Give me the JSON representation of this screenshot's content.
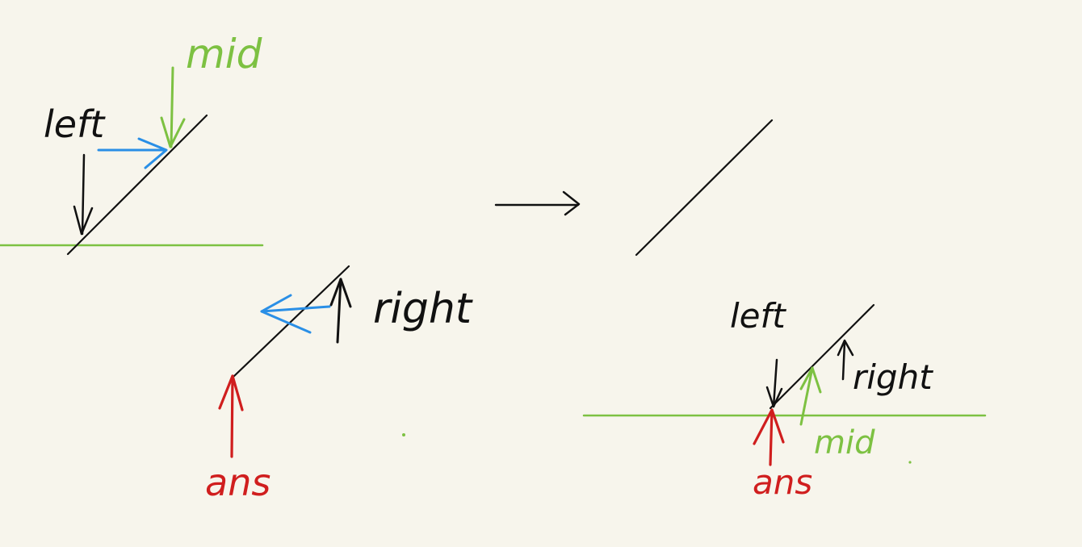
{
  "colors": {
    "background": "#f7f5ec",
    "black": "#111111",
    "green": "#7dc142",
    "blue": "#2a8fe6",
    "red": "#d01e1e"
  },
  "left_panel": {
    "left_label": "left",
    "mid_label": "mid",
    "right_label": "right",
    "ans_label": "ans"
  },
  "transition_arrow_icon": "right-arrow-icon",
  "right_panel": {
    "left_label": "left",
    "right_label": "right",
    "mid_label": "mid",
    "ans_label": "ans"
  }
}
